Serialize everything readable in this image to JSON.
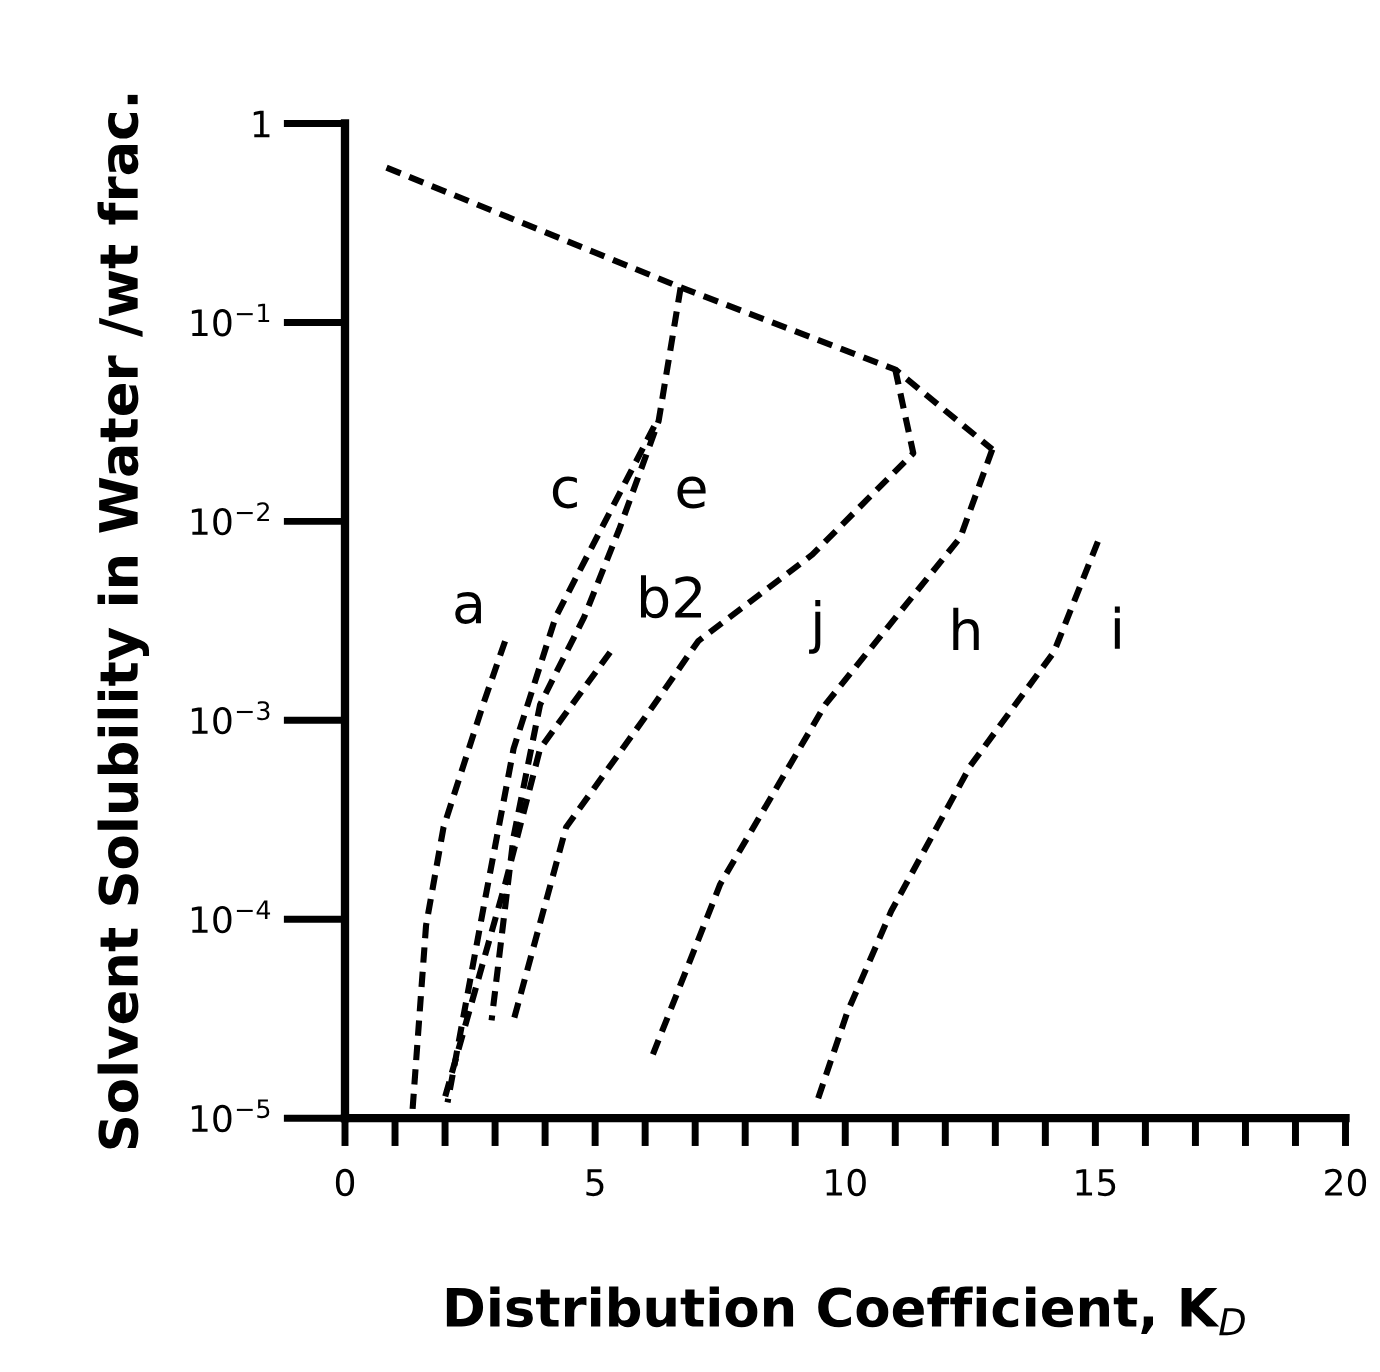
{
  "chart_data": {
    "type": "line",
    "xlabel": "Distribution Coefficient, K$_{D}$",
    "ylabel": "Solvent Solubility in Water /wt frac.",
    "log": "y",
    "xlim": [
      0,
      20
    ],
    "ylim": [
      1e-05,
      1
    ],
    "xticks": [
      0,
      {
        "value": 1,
        "label": null
      },
      {
        "value": 2,
        "label": null
      },
      {
        "value": 3,
        "label": null
      },
      {
        "value": 4,
        "label": null
      },
      5,
      {
        "value": 6,
        "label": null
      },
      {
        "value": 7,
        "label": null
      },
      {
        "value": 8,
        "label": null
      },
      {
        "value": 9,
        "label": null
      },
      10,
      {
        "value": 11,
        "label": null
      },
      {
        "value": 12,
        "label": null
      },
      {
        "value": 13,
        "label": null
      },
      {
        "value": 14,
        "label": null
      },
      15,
      {
        "value": 16,
        "label": null
      },
      {
        "value": 17,
        "label": null
      },
      {
        "value": 18,
        "label": null
      },
      {
        "value": 19,
        "label": null
      },
      20
    ],
    "yticks": [
      {
        "value": 1e-05,
        "label": "10$^{−5}$"
      },
      {
        "value": 0.0001,
        "label": "10$^{−4}$"
      },
      {
        "value": 0.001,
        "label": "10$^{−3}$"
      },
      {
        "value": 0.01,
        "label": "10$^{−2}$"
      },
      {
        "value": 0.1,
        "label": "10$^{−1}$"
      },
      1
    ],
    "grid": false,
    "legend": false,
    "line_style": "dashed",
    "marker": "none",
    "series": [
      {
        "color": "#000000",
        "x": [
          0.83,
          6.71,
          11.0,
          12.94
        ],
        "values": [
          0.6,
          0.15,
          0.058,
          0.023
        ]
      },
      {
        "color": "#000000",
        "x": [
          12.94,
          12.3,
          9.6,
          7.5,
          6.09
        ],
        "values": [
          0.023,
          0.0083,
          0.0012,
          0.00015,
          1.9e-05
        ]
      },
      {
        "color": "#000000",
        "x": [
          11.0,
          11.36,
          9.34,
          7.06,
          6.18,
          4.42,
          3.37
        ],
        "values": [
          0.058,
          0.022,
          0.0068,
          0.0025,
          0.0012,
          0.00029,
          3.1e-05
        ]
      },
      {
        "color": "#000000",
        "x": [
          6.71,
          6.27,
          5.48,
          4.78,
          3.9,
          3.37,
          2.93
        ],
        "values": [
          0.15,
          0.032,
          0.0091,
          0.0033,
          0.0012,
          0.00026,
          3.1e-05
        ]
      },
      {
        "color": "#000000",
        "x": [
          6.18,
          4.21,
          3.37,
          2.81,
          2.05
        ],
        "values": [
          0.03,
          0.0033,
          0.00072,
          0.00013,
          1.2e-05
        ]
      },
      {
        "color": "#000000",
        "x": [
          5.3,
          3.9,
          3.2,
          1.97
        ],
        "values": [
          0.0022,
          0.00072,
          0.00015,
          1.2e-05
        ]
      },
      {
        "color": "#000000",
        "x": [
          3.2,
          2.76,
          1.97,
          1.62,
          1.35
        ],
        "values": [
          0.0025,
          0.0012,
          0.00029,
          9.3e-05,
          1.1e-05
        ]
      },
      {
        "color": "#000000",
        "x": [
          15.05,
          14.17,
          12.5,
          10.92,
          10.04,
          9.43
        ],
        "values": [
          0.0079,
          0.0022,
          0.00059,
          0.00011,
          3.4e-05,
          1.2e-05
        ]
      }
    ],
    "annotations": [
      {
        "text": "a",
        "x": 3.2,
        "y": 0.0025
      },
      {
        "text": "c",
        "x": 5.51,
        "y": 0.014
      },
      {
        "text": "e",
        "x": 5.76,
        "y": 0.014
      },
      {
        "text": "b2",
        "x": 5.3,
        "y": 0.0022
      },
      {
        "text": "j",
        "x": 9.34,
        "y": 0.0068
      },
      {
        "text": "h",
        "x": 12.3,
        "y": 0.0083
      },
      {
        "text": "i",
        "x": 15.05,
        "y": 0.0079
      }
    ]
  }
}
